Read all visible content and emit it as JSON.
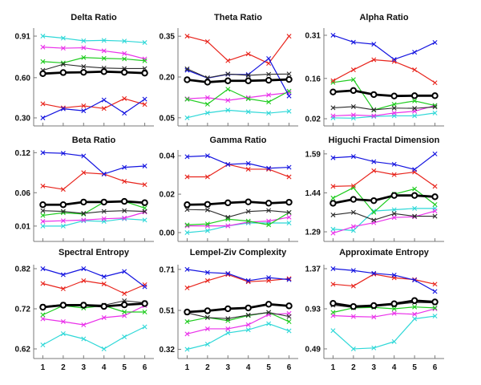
{
  "figure": {
    "title": "",
    "background_color": "#ffffff",
    "axis_color": "#7a7a7a",
    "text_color": "#111111"
  },
  "series_styles": [
    {
      "key": "cyan",
      "color": "#2fd8d8",
      "marker": "x",
      "width": 1.2
    },
    {
      "key": "magenta",
      "color": "#ea30ea",
      "marker": "x",
      "width": 1.2
    },
    {
      "key": "green",
      "color": "#1ecc1e",
      "marker": "x",
      "width": 1.2
    },
    {
      "key": "red",
      "color": "#e8241c",
      "marker": "x",
      "width": 1.2
    },
    {
      "key": "blue",
      "color": "#1414e0",
      "marker": "x",
      "width": 1.2
    },
    {
      "key": "dark",
      "color": "#2b2b2b",
      "marker": "x",
      "width": 1.1
    },
    {
      "key": "mean",
      "color": "#000000",
      "marker": "o",
      "width": 2.8
    }
  ],
  "chart_data": [
    {
      "type": "line",
      "title": "Delta Ratio",
      "x": [
        1,
        2,
        3,
        4,
        5,
        6
      ],
      "x_tick_labels": [
        "1",
        "2",
        "3",
        "4",
        "5",
        "6"
      ],
      "ylim": [
        0.24,
        0.97
      ],
      "ytick_values": [
        0.3,
        0.6,
        0.91
      ],
      "ytick_labels": [
        "0.30",
        "0.60",
        "0.91"
      ],
      "series": {
        "cyan": [
          0.91,
          0.895,
          0.875,
          0.878,
          0.873,
          0.862
        ],
        "magenta": [
          0.828,
          0.82,
          0.823,
          0.8,
          0.78,
          0.74
        ],
        "green": [
          0.72,
          0.71,
          0.75,
          0.744,
          0.74,
          0.726
        ],
        "red": [
          0.405,
          0.375,
          0.39,
          0.37,
          0.444,
          0.4
        ],
        "blue": [
          0.3,
          0.368,
          0.353,
          0.434,
          0.335,
          0.44
        ],
        "dark": [
          0.655,
          0.7,
          0.683,
          0.672,
          0.668,
          0.668
        ],
        "mean": [
          0.63,
          0.638,
          0.64,
          0.645,
          0.64,
          0.634
        ]
      }
    },
    {
      "type": "line",
      "title": "Theta Ratio",
      "x": [
        1,
        2,
        3,
        4,
        5,
        6
      ],
      "x_tick_labels": [
        "1",
        "2",
        "3",
        "4",
        "5",
        "6"
      ],
      "ylim": [
        0.02,
        0.38
      ],
      "ytick_values": [
        0.05,
        0.2,
        0.35
      ],
      "ytick_labels": [
        "0.05",
        "0.20",
        "0.35"
      ],
      "series": {
        "cyan": [
          0.05,
          0.068,
          0.078,
          0.072,
          0.067,
          0.074
        ],
        "magenta": [
          0.12,
          0.124,
          0.114,
          0.124,
          0.134,
          0.142
        ],
        "green": [
          0.118,
          0.1,
          0.155,
          0.12,
          0.108,
          0.148
        ],
        "red": [
          0.35,
          0.33,
          0.26,
          0.285,
          0.25,
          0.35
        ],
        "blue": [
          0.225,
          0.196,
          0.21,
          0.209,
          0.268,
          0.13
        ],
        "dark": [
          0.23,
          0.197,
          0.211,
          0.206,
          0.21,
          0.211
        ],
        "mean": [
          0.19,
          0.181,
          0.186,
          0.186,
          0.188,
          0.191
        ]
      }
    },
    {
      "type": "line",
      "title": "Alpha Ratio",
      "x": [
        1,
        2,
        3,
        4,
        5,
        6
      ],
      "x_tick_labels": [
        "1",
        "2",
        "3",
        "4",
        "5",
        "6"
      ],
      "ylim": [
        -0.005,
        0.335
      ],
      "ytick_values": [
        0.02,
        0.16,
        0.31
      ],
      "ytick_labels": [
        "0.02",
        "0.16",
        "0.31"
      ],
      "series": {
        "cyan": [
          0.023,
          0.022,
          0.028,
          0.03,
          0.03,
          0.04
        ],
        "magenta": [
          0.03,
          0.033,
          0.03,
          0.04,
          0.046,
          0.066
        ],
        "green": [
          0.146,
          0.156,
          0.05,
          0.07,
          0.082,
          0.066
        ],
        "red": [
          0.152,
          0.19,
          0.225,
          0.219,
          0.19,
          0.145
        ],
        "blue": [
          0.31,
          0.286,
          0.279,
          0.226,
          0.251,
          0.285
        ],
        "dark": [
          0.058,
          0.062,
          0.051,
          0.057,
          0.056,
          0.061
        ],
        "mean": [
          0.113,
          0.118,
          0.104,
          0.099,
          0.1,
          0.1
        ]
      }
    },
    {
      "type": "line",
      "title": "Beta Ratio",
      "x": [
        1,
        2,
        3,
        4,
        5,
        6
      ],
      "x_tick_labels": [
        "1",
        "2",
        "3",
        "4",
        "5",
        "6"
      ],
      "ylim": [
        -0.013,
        0.124
      ],
      "ytick_values": [
        0.01,
        0.06,
        0.12
      ],
      "ytick_labels": [
        "0.01",
        "0.06",
        "0.12"
      ],
      "series": {
        "cyan": [
          0.01,
          0.01,
          0.018,
          0.017,
          0.021,
          0.019
        ],
        "magenta": [
          0.017,
          0.018,
          0.019,
          0.021,
          0.022,
          0.031
        ],
        "green": [
          0.026,
          0.03,
          0.028,
          0.046,
          0.047,
          0.037
        ],
        "red": [
          0.07,
          0.065,
          0.09,
          0.088,
          0.077,
          0.072
        ],
        "blue": [
          0.12,
          0.119,
          0.115,
          0.088,
          0.098,
          0.1
        ],
        "dark": [
          0.033,
          0.032,
          0.029,
          0.032,
          0.033,
          0.032
        ],
        "mean": [
          0.042,
          0.042,
          0.046,
          0.046,
          0.047,
          0.045
        ]
      }
    },
    {
      "type": "line",
      "title": "Gamma Ratio",
      "x": [
        1,
        2,
        3,
        4,
        5,
        6
      ],
      "x_tick_labels": [
        "1",
        "2",
        "3",
        "4",
        "5",
        "6"
      ],
      "ylim": [
        -0.0046,
        0.043
      ],
      "ytick_values": [
        0.0,
        0.02,
        0.04
      ],
      "ytick_labels": [
        "0.00",
        "0.02",
        "0.04"
      ],
      "series": {
        "cyan": [
          0.0,
          0.001,
          0.0035,
          0.005,
          0.005,
          0.005
        ],
        "magenta": [
          0.0035,
          0.0035,
          0.0035,
          0.0055,
          0.006,
          0.008
        ],
        "green": [
          0.004,
          0.0045,
          0.007,
          0.006,
          0.004,
          0.0105
        ],
        "red": [
          0.029,
          0.029,
          0.0355,
          0.033,
          0.033,
          0.029
        ],
        "blue": [
          0.0395,
          0.04,
          0.0355,
          0.036,
          0.0335,
          0.034
        ],
        "dark": [
          0.012,
          0.0118,
          0.008,
          0.011,
          0.0115,
          0.0105
        ],
        "mean": [
          0.0145,
          0.0147,
          0.0155,
          0.016,
          0.0153,
          0.0158
        ]
      }
    },
    {
      "type": "line",
      "title": "Higuchi Fractal Dimension",
      "x": [
        1,
        2,
        3,
        4,
        5,
        6
      ],
      "x_tick_labels": [
        "1",
        "2",
        "3",
        "4",
        "5",
        "6"
      ],
      "ylim": [
        1.253,
        1.605
      ],
      "ytick_values": [
        1.29,
        1.44,
        1.59
      ],
      "ytick_labels": [
        "1.29",
        "1.44",
        "1.59"
      ],
      "series": {
        "cyan": [
          1.3,
          1.295,
          1.37,
          1.375,
          1.38,
          1.38
        ],
        "magenta": [
          1.285,
          1.31,
          1.325,
          1.345,
          1.348,
          1.37
        ],
        "green": [
          1.42,
          1.46,
          1.365,
          1.435,
          1.455,
          1.395
        ],
        "red": [
          1.465,
          1.467,
          1.525,
          1.51,
          1.52,
          1.465
        ],
        "blue": [
          1.575,
          1.58,
          1.56,
          1.55,
          1.53,
          1.59
        ],
        "dark": [
          1.355,
          1.365,
          1.335,
          1.36,
          1.35,
          1.35
        ],
        "mean": [
          1.4,
          1.415,
          1.41,
          1.43,
          1.43,
          1.425
        ]
      }
    },
    {
      "type": "line",
      "title": "Spectral Entropy",
      "x": [
        1,
        2,
        3,
        4,
        5,
        6
      ],
      "x_tick_labels": [
        "1",
        "2",
        "3",
        "4",
        "5",
        "6"
      ],
      "ylim": [
        0.596,
        0.83
      ],
      "ytick_values": [
        0.62,
        0.72,
        0.82
      ],
      "ytick_labels": [
        "0.62",
        "0.72",
        "0.82"
      ],
      "series": {
        "cyan": [
          0.63,
          0.658,
          0.645,
          0.62,
          0.65,
          0.675
        ],
        "magenta": [
          0.695,
          0.688,
          0.68,
          0.698,
          0.703,
          0.728
        ],
        "green": [
          0.705,
          0.728,
          0.722,
          0.728,
          0.712,
          0.712
        ],
        "red": [
          0.783,
          0.77,
          0.79,
          0.782,
          0.758,
          0.78
        ],
        "blue": [
          0.82,
          0.805,
          0.82,
          0.8,
          0.813,
          0.775
        ],
        "dark": [
          0.726,
          0.731,
          0.731,
          0.729,
          0.74,
          0.735
        ],
        "mean": [
          0.724,
          0.729,
          0.729,
          0.726,
          0.73,
          0.733
        ]
      }
    },
    {
      "type": "line",
      "title": "Lempel-Ziv Complexity",
      "x": [
        1,
        2,
        3,
        4,
        5,
        6
      ],
      "x_tick_labels": [
        "1",
        "2",
        "3",
        "4",
        "5",
        "6"
      ],
      "ylim": [
        0.275,
        0.733
      ],
      "ytick_values": [
        0.32,
        0.51,
        0.71
      ],
      "ytick_labels": [
        "0.32",
        "0.51",
        "0.71"
      ],
      "series": {
        "cyan": [
          0.32,
          0.345,
          0.4,
          0.415,
          0.445,
          0.41
        ],
        "magenta": [
          0.395,
          0.42,
          0.42,
          0.44,
          0.49,
          0.495
        ],
        "green": [
          0.455,
          0.475,
          0.46,
          0.485,
          0.5,
          0.455
        ],
        "red": [
          0.62,
          0.655,
          0.685,
          0.65,
          0.655,
          0.665
        ],
        "blue": [
          0.71,
          0.695,
          0.69,
          0.655,
          0.67,
          0.66
        ],
        "dark": [
          0.498,
          0.475,
          0.47,
          0.487,
          0.5,
          0.48
        ],
        "mean": [
          0.502,
          0.508,
          0.518,
          0.522,
          0.54,
          0.532
        ]
      }
    },
    {
      "type": "line",
      "title": "Approximate Entropy",
      "x": [
        1,
        2,
        3,
        4,
        5,
        6
      ],
      "x_tick_labels": [
        "1",
        "2",
        "3",
        "4",
        "5",
        "6"
      ],
      "ylim": [
        0.384,
        1.414
      ],
      "ytick_values": [
        0.49,
        0.93,
        1.37
      ],
      "ytick_labels": [
        "0.49",
        "0.93",
        "1.37"
      ],
      "series": {
        "cyan": [
          0.69,
          0.49,
          0.5,
          0.57,
          0.82,
          0.85
        ],
        "magenta": [
          0.855,
          0.845,
          0.84,
          0.88,
          0.87,
          0.93
        ],
        "green": [
          0.89,
          0.94,
          0.945,
          0.93,
          0.95,
          0.94
        ],
        "red": [
          1.2,
          1.18,
          1.31,
          1.27,
          1.25,
          1.2
        ],
        "blue": [
          1.37,
          1.35,
          1.32,
          1.3,
          1.245,
          1.12
        ],
        "dark": [
          0.97,
          0.945,
          0.955,
          0.975,
          1.0,
          0.995
        ],
        "mean": [
          0.99,
          0.955,
          0.965,
          0.985,
          1.02,
          1.005
        ]
      }
    }
  ]
}
